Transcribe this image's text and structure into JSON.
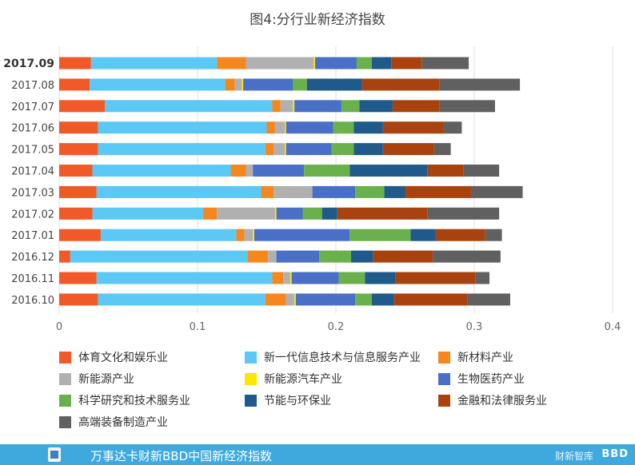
{
  "chart_data": {
    "type": "bar",
    "orientation": "horizontal",
    "stacked": true,
    "title": "图4:分行业新经济指数",
    "xlim": [
      0,
      0.4
    ],
    "x_ticks": [
      "0",
      "0.1",
      "0.2",
      "0.3",
      "0.4"
    ],
    "grid": true,
    "legend_position": "bottom",
    "categories": [
      "2017.09",
      "2017.08",
      "2017.07",
      "2017.06",
      "2017.05",
      "2017.04",
      "2017.03",
      "2017.02",
      "2017.01",
      "2016.12",
      "2016.11",
      "2016.10"
    ],
    "highlight_category": "2017.09",
    "series": [
      {
        "name": "体育文化和娱乐业",
        "color": "#f05a28",
        "values": [
          0.023,
          0.022,
          0.033,
          0.028,
          0.028,
          0.024,
          0.027,
          0.024,
          0.03,
          0.008,
          0.027,
          0.028
        ]
      },
      {
        "name": "新一代信息技术与信息服务产业",
        "color": "#5bc8f5",
        "values": [
          0.091,
          0.098,
          0.121,
          0.122,
          0.121,
          0.1,
          0.119,
          0.08,
          0.098,
          0.128,
          0.127,
          0.121
        ]
      },
      {
        "name": "新材料产业",
        "color": "#f5871f",
        "values": [
          0.021,
          0.007,
          0.006,
          0.006,
          0.006,
          0.011,
          0.009,
          0.01,
          0.006,
          0.015,
          0.008,
          0.015
        ]
      },
      {
        "name": "新能源产业",
        "color": "#b0b0b0",
        "values": [
          0.049,
          0.005,
          0.009,
          0.007,
          0.008,
          0.005,
          0.028,
          0.042,
          0.006,
          0.006,
          0.005,
          0.006
        ]
      },
      {
        "name": "新能源汽车产业",
        "color": "#ffe600",
        "values": [
          0.001,
          0.001,
          0.001,
          0.001,
          0.001,
          0.0,
          0.0,
          0.001,
          0.001,
          0.0,
          0.001,
          0.001
        ]
      },
      {
        "name": "生物医药产业",
        "color": "#4a6fc7",
        "values": [
          0.03,
          0.036,
          0.034,
          0.034,
          0.033,
          0.037,
          0.031,
          0.019,
          0.069,
          0.031,
          0.034,
          0.043
        ]
      },
      {
        "name": "科学研究和技术服务业",
        "color": "#6ab04c",
        "values": [
          0.011,
          0.01,
          0.013,
          0.015,
          0.016,
          0.033,
          0.021,
          0.014,
          0.044,
          0.023,
          0.019,
          0.012
        ]
      },
      {
        "name": "节能与环保业",
        "color": "#1f5a8a",
        "values": [
          0.014,
          0.04,
          0.024,
          0.021,
          0.021,
          0.056,
          0.015,
          0.011,
          0.018,
          0.016,
          0.022,
          0.016
        ]
      },
      {
        "name": "金融和法律服务业",
        "color": "#a8430f",
        "values": [
          0.022,
          0.056,
          0.034,
          0.044,
          0.037,
          0.026,
          0.048,
          0.065,
          0.036,
          0.043,
          0.058,
          0.053
        ]
      },
      {
        "name": "高端装备制造产业",
        "color": "#606060",
        "values": [
          0.034,
          0.058,
          0.04,
          0.013,
          0.012,
          0.026,
          0.037,
          0.052,
          0.012,
          0.049,
          0.01,
          0.031
        ]
      }
    ]
  },
  "footer": {
    "title": "万事达卡财新BBD中国新经济指数",
    "brand1": "财新智库",
    "brand2": "BBD"
  }
}
